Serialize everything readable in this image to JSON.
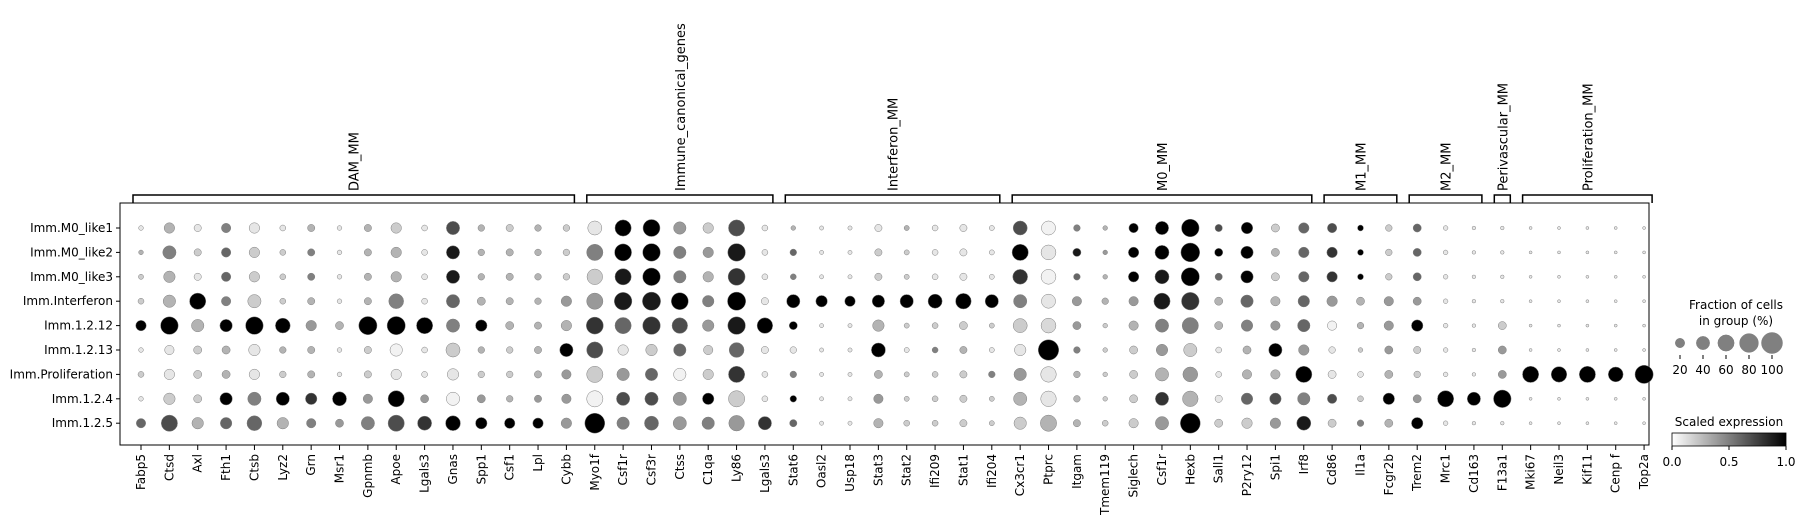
{
  "chart_data": {
    "type": "dotplot",
    "groups": [
      "Imm.M0_like1",
      "Imm.M0_like2",
      "Imm.M0_like3",
      "Imm.Interferon",
      "Imm.1.2.12",
      "Imm.1.2.13",
      "Imm.Proliferation",
      "Imm.1.2.4",
      "Imm.1.2.5"
    ],
    "genes": [
      "Fabp5",
      "Ctsd",
      "Axl",
      "Fth1",
      "Ctsb",
      "Lyz2",
      "Grn",
      "Msr1",
      "Gpnmb",
      "Apoe",
      "Lgals3",
      "Gnas",
      "Spp1",
      "Csf1",
      "Lpl",
      "Cybb",
      "Myo1f",
      "Csf1r",
      "Csf3r",
      "Ctss",
      "C1qa",
      "Ly86",
      "Lgals3",
      "Stat6",
      "Oasl2",
      "Usp18",
      "Stat3",
      "Stat2",
      "Ifi209",
      "Stat1",
      "Ifi204",
      "Cx3cr1",
      "Ptprc",
      "Itgam",
      "Tmem119",
      "Siglech",
      "Csf1r",
      "Hexb",
      "Sall1",
      "P2ry12",
      "Spi1",
      "Irf8",
      "Cd86",
      "Il1a",
      "Fcgr2b",
      "Trem2",
      "Mrc1",
      "Cd163",
      "F13a1",
      "Mki67",
      "Neil3",
      "Kif11",
      "Cenp f",
      "Top2a"
    ],
    "gene_categories": [
      {
        "name": "DAM_MM",
        "start": 0,
        "end": 15
      },
      {
        "name": "Immune_canonical_genes",
        "start": 16,
        "end": 22
      },
      {
        "name": "Interferon_MM",
        "start": 23,
        "end": 30
      },
      {
        "name": "M0_MM",
        "start": 31,
        "end": 41
      },
      {
        "name": "M1_MM",
        "start": 42,
        "end": 44
      },
      {
        "name": "M2_MM",
        "start": 45,
        "end": 47
      },
      {
        "name": "Perivascular_MM",
        "start": 48,
        "end": 48
      },
      {
        "name": "Proliferation_MM",
        "start": 49,
        "end": 53
      }
    ],
    "fraction_pct": [
      [
        5,
        25,
        12,
        20,
        25,
        8,
        12,
        5,
        12,
        25,
        8,
        40,
        10,
        12,
        10,
        10,
        45,
        60,
        65,
        35,
        25,
        60,
        8,
        5,
        4,
        4,
        12,
        6,
        8,
        12,
        6,
        45,
        45,
        10,
        5,
        20,
        40,
        70,
        12,
        30,
        15,
        25,
        20,
        8,
        10,
        15,
        5,
        3,
        3,
        2,
        2,
        2,
        2,
        2
      ],
      [
        5,
        40,
        12,
        20,
        25,
        8,
        12,
        5,
        12,
        25,
        8,
        40,
        10,
        12,
        10,
        10,
        60,
        65,
        70,
        35,
        25,
        70,
        8,
        10,
        4,
        4,
        12,
        6,
        8,
        12,
        6,
        60,
        50,
        15,
        5,
        25,
        45,
        80,
        15,
        35,
        15,
        25,
        25,
        8,
        10,
        15,
        5,
        3,
        3,
        2,
        2,
        2,
        2,
        2
      ],
      [
        6,
        30,
        12,
        20,
        25,
        8,
        12,
        5,
        12,
        25,
        8,
        40,
        10,
        12,
        10,
        10,
        55,
        60,
        70,
        35,
        25,
        65,
        8,
        8,
        4,
        4,
        12,
        6,
        8,
        12,
        6,
        50,
        50,
        10,
        5,
        25,
        45,
        75,
        12,
        35,
        15,
        25,
        25,
        8,
        10,
        15,
        5,
        3,
        3,
        2,
        2,
        2,
        2,
        2
      ],
      [
        8,
        35,
        60,
        20,
        40,
        8,
        12,
        5,
        12,
        50,
        8,
        40,
        15,
        12,
        10,
        25,
        60,
        70,
        75,
        65,
        30,
        75,
        12,
        40,
        30,
        25,
        35,
        40,
        45,
        55,
        40,
        40,
        45,
        20,
        10,
        20,
        60,
        70,
        15,
        35,
        20,
        30,
        25,
        15,
        20,
        15,
        5,
        3,
        3,
        2,
        2,
        2,
        2,
        2
      ],
      [
        25,
        70,
        35,
        35,
        70,
        50,
        25,
        15,
        75,
        75,
        60,
        40,
        30,
        15,
        12,
        25,
        65,
        60,
        70,
        55,
        30,
        70,
        55,
        15,
        4,
        4,
        30,
        6,
        8,
        15,
        6,
        45,
        50,
        15,
        5,
        20,
        40,
        60,
        15,
        30,
        20,
        35,
        20,
        10,
        20,
        30,
        5,
        3,
        15,
        2,
        2,
        2,
        2,
        2
      ],
      [
        5,
        20,
        15,
        15,
        30,
        10,
        12,
        5,
        12,
        35,
        8,
        45,
        10,
        10,
        12,
        40,
        60,
        25,
        30,
        35,
        20,
        50,
        12,
        10,
        4,
        4,
        45,
        6,
        8,
        12,
        6,
        30,
        95,
        10,
        5,
        15,
        30,
        40,
        8,
        15,
        40,
        25,
        10,
        5,
        15,
        12,
        5,
        3,
        15,
        2,
        2,
        2,
        2,
        2
      ],
      [
        8,
        25,
        15,
        15,
        25,
        10,
        12,
        5,
        12,
        25,
        8,
        30,
        10,
        10,
        12,
        20,
        60,
        35,
        35,
        35,
        25,
        60,
        8,
        10,
        4,
        4,
        15,
        6,
        8,
        12,
        10,
        35,
        55,
        10,
        5,
        15,
        40,
        50,
        8,
        20,
        20,
        60,
        15,
        8,
        15,
        10,
        5,
        3,
        15,
        60,
        55,
        60,
        50,
        75
      ],
      [
        5,
        30,
        15,
        35,
        40,
        40,
        30,
        45,
        20,
        60,
        15,
        40,
        15,
        10,
        12,
        20,
        60,
        40,
        40,
        40,
        30,
        60,
        8,
        10,
        4,
        4,
        20,
        6,
        8,
        12,
        6,
        40,
        55,
        10,
        5,
        15,
        40,
        55,
        12,
        30,
        30,
        35,
        20,
        8,
        30,
        15,
        60,
        40,
        70,
        2,
        2,
        2,
        2,
        2
      ],
      [
        20,
        60,
        30,
        30,
        50,
        30,
        20,
        15,
        40,
        60,
        45,
        50,
        30,
        25,
        25,
        25,
        90,
        35,
        45,
        40,
        35,
        55,
        40,
        12,
        4,
        4,
        20,
        8,
        8,
        12,
        6,
        35,
        60,
        12,
        8,
        20,
        40,
        90,
        15,
        25,
        25,
        45,
        15,
        10,
        15,
        30,
        5,
        3,
        3,
        2,
        2,
        2,
        2,
        2
      ]
    ],
    "mean_expression": [
      [
        0.1,
        0.3,
        0.1,
        0.5,
        0.1,
        0.1,
        0.3,
        0.1,
        0.3,
        0.2,
        0.1,
        0.7,
        0.3,
        0.2,
        0.3,
        0.2,
        0.1,
        1.0,
        1.0,
        0.4,
        0.2,
        0.7,
        0.1,
        0.3,
        0.1,
        0.1,
        0.1,
        0.3,
        0.1,
        0.1,
        0.1,
        0.7,
        0.05,
        0.5,
        0.3,
        1.0,
        1.0,
        1.0,
        0.7,
        1.0,
        0.2,
        0.6,
        0.7,
        1.0,
        0.2,
        0.6,
        0.1,
        0.1,
        0.1,
        0.1,
        0.1,
        0.1,
        0.1,
        0.1
      ],
      [
        0.3,
        0.5,
        0.2,
        0.6,
        0.2,
        0.2,
        0.5,
        0.1,
        0.3,
        0.3,
        0.1,
        0.9,
        0.3,
        0.3,
        0.3,
        0.2,
        0.5,
        1.0,
        1.0,
        0.5,
        0.4,
        0.9,
        0.1,
        0.6,
        0.1,
        0.1,
        0.2,
        0.2,
        0.1,
        0.1,
        0.1,
        1.0,
        0.1,
        0.9,
        0.4,
        1.0,
        1.0,
        1.0,
        1.0,
        1.0,
        0.3,
        0.6,
        0.8,
        1.0,
        0.2,
        0.6,
        0.1,
        0.1,
        0.1,
        0.1,
        0.1,
        0.1,
        0.1,
        0.1
      ],
      [
        0.2,
        0.3,
        0.1,
        0.6,
        0.2,
        0.2,
        0.5,
        0.1,
        0.3,
        0.3,
        0.1,
        0.9,
        0.3,
        0.3,
        0.3,
        0.2,
        0.2,
        0.9,
        1.0,
        0.5,
        0.3,
        0.8,
        0.1,
        0.5,
        0.1,
        0.1,
        0.2,
        0.2,
        0.1,
        0.1,
        0.1,
        0.8,
        0.05,
        0.6,
        0.3,
        1.0,
        0.9,
        1.0,
        0.6,
        1.0,
        0.2,
        0.6,
        0.8,
        1.0,
        0.2,
        0.6,
        0.1,
        0.1,
        0.1,
        0.1,
        0.1,
        0.1,
        0.1,
        0.1
      ],
      [
        0.2,
        0.3,
        1.0,
        0.5,
        0.2,
        0.2,
        0.3,
        0.1,
        0.3,
        0.5,
        0.1,
        0.6,
        0.3,
        0.3,
        0.3,
        0.4,
        0.4,
        0.9,
        0.9,
        1.0,
        0.5,
        1.0,
        0.1,
        1.0,
        1.0,
        1.0,
        1.0,
        1.0,
        1.0,
        1.0,
        1.0,
        0.5,
        0.1,
        0.4,
        0.3,
        0.4,
        0.9,
        0.8,
        0.3,
        0.6,
        0.3,
        0.6,
        0.4,
        0.3,
        0.4,
        0.4,
        0.1,
        0.1,
        0.1,
        0.1,
        0.1,
        0.1,
        0.1,
        0.1
      ],
      [
        1.0,
        1.0,
        0.3,
        1.0,
        1.0,
        1.0,
        0.4,
        0.3,
        1.0,
        1.0,
        1.0,
        0.5,
        1.0,
        0.3,
        0.3,
        0.3,
        0.8,
        0.6,
        0.8,
        0.7,
        0.4,
        0.9,
        1.0,
        1.0,
        0.1,
        0.1,
        0.3,
        0.2,
        0.2,
        0.2,
        0.2,
        0.2,
        0.15,
        0.4,
        0.2,
        0.3,
        0.5,
        0.5,
        0.3,
        0.5,
        0.4,
        0.6,
        0.05,
        0.3,
        0.4,
        1.0,
        0.1,
        0.1,
        0.2,
        0.1,
        0.1,
        0.1,
        0.1,
        0.1
      ],
      [
        0.1,
        0.1,
        0.2,
        0.3,
        0.1,
        0.3,
        0.3,
        0.1,
        0.2,
        0.05,
        0.1,
        0.2,
        0.3,
        0.2,
        0.3,
        1.0,
        0.7,
        0.1,
        0.2,
        0.6,
        0.2,
        0.6,
        0.1,
        0.1,
        0.1,
        0.1,
        1.0,
        0.1,
        0.5,
        0.3,
        0.1,
        0.1,
        1.0,
        0.5,
        0.2,
        0.2,
        0.4,
        0.2,
        0.1,
        0.3,
        1.0,
        0.4,
        0.1,
        0.2,
        0.4,
        0.2,
        0.1,
        0.1,
        0.4,
        0.1,
        0.1,
        0.1,
        0.1,
        0.1
      ],
      [
        0.2,
        0.1,
        0.2,
        0.3,
        0.1,
        0.2,
        0.3,
        0.1,
        0.2,
        0.1,
        0.1,
        0.1,
        0.2,
        0.2,
        0.3,
        0.4,
        0.2,
        0.4,
        0.6,
        0.05,
        0.2,
        0.8,
        0.1,
        0.5,
        0.1,
        0.1,
        0.3,
        0.2,
        0.2,
        0.2,
        0.5,
        0.4,
        0.1,
        0.3,
        0.2,
        0.2,
        0.3,
        0.4,
        0.1,
        0.3,
        0.3,
        1.0,
        0.1,
        0.1,
        0.3,
        0.2,
        0.1,
        0.1,
        0.4,
        1.0,
        1.0,
        1.0,
        1.0,
        1.0
      ],
      [
        0.1,
        0.2,
        0.2,
        1.0,
        0.5,
        1.0,
        0.8,
        1.0,
        0.4,
        1.0,
        0.4,
        0.05,
        0.4,
        0.3,
        0.4,
        0.4,
        0.05,
        0.7,
        0.7,
        0.4,
        1.0,
        0.2,
        0.1,
        1.0,
        0.1,
        0.1,
        0.4,
        0.2,
        0.2,
        0.2,
        0.2,
        0.3,
        0.1,
        0.3,
        0.2,
        0.2,
        0.8,
        0.3,
        0.1,
        0.6,
        0.7,
        0.5,
        0.7,
        0.2,
        1.0,
        0.4,
        1.0,
        1.0,
        1.0,
        0.1,
        0.1,
        0.1,
        0.1,
        0.1
      ],
      [
        0.6,
        0.7,
        0.3,
        0.6,
        0.6,
        0.3,
        0.5,
        0.4,
        0.5,
        0.7,
        0.8,
        1.0,
        1.0,
        1.0,
        1.0,
        0.4,
        1.0,
        0.5,
        0.6,
        0.4,
        0.5,
        0.4,
        0.8,
        0.6,
        0.1,
        0.1,
        0.3,
        0.2,
        0.2,
        0.2,
        0.2,
        0.2,
        0.3,
        0.3,
        0.2,
        0.2,
        0.4,
        1.0,
        0.2,
        0.2,
        0.4,
        0.9,
        0.2,
        0.5,
        0.3,
        1.0,
        0.1,
        0.1,
        0.1,
        0.1,
        0.1,
        0.1,
        0.1,
        0.1
      ]
    ],
    "size_legend": {
      "title_line1": "Fraction of cells",
      "title_line2": "in group (%)",
      "values": [
        20,
        40,
        60,
        80,
        100
      ],
      "labels": [
        "20",
        "40",
        "60",
        "80",
        "100"
      ]
    },
    "color_legend": {
      "title": "Scaled expression",
      "range": [
        0,
        1
      ],
      "ticks": [
        0.0,
        0.5,
        1.0
      ],
      "tick_labels": [
        "0.0",
        "0.5",
        "1.0"
      ],
      "colormap": "Greys",
      "color_low": "#ffffff",
      "color_high": "#000000"
    }
  }
}
